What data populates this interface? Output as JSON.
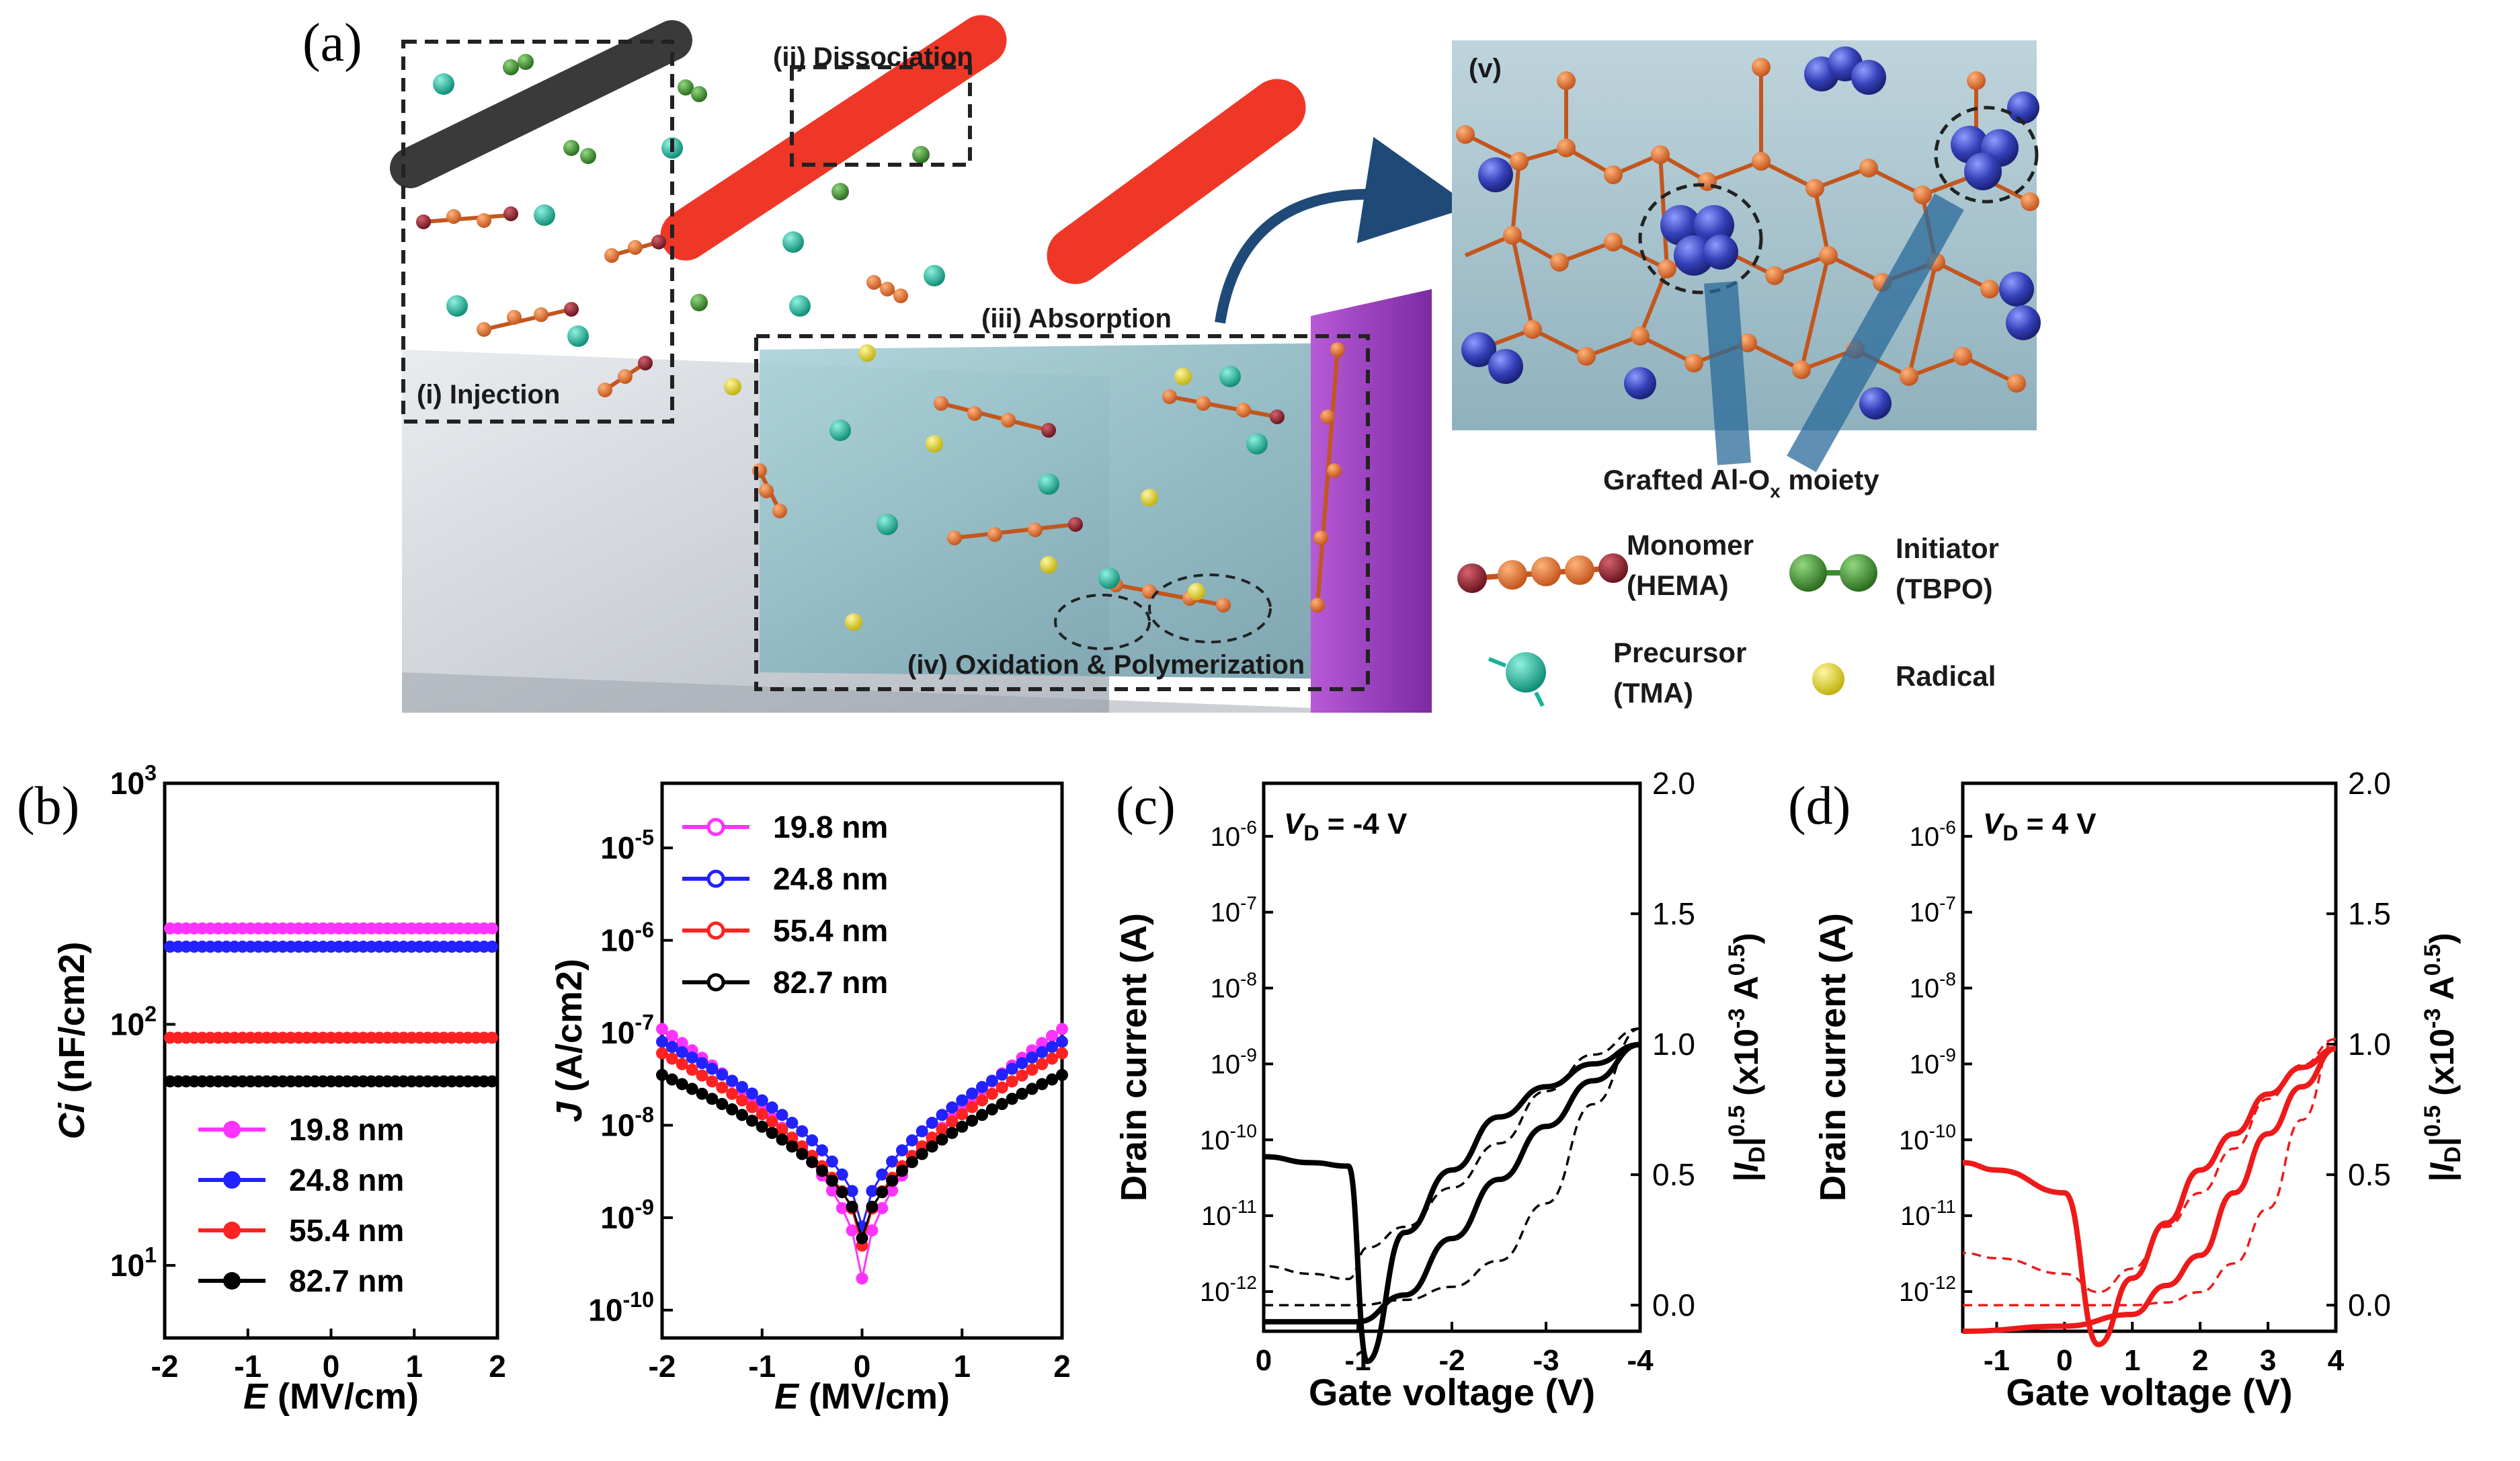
{
  "panel_labels": {
    "a": "(a)",
    "b": "(b)",
    "c": "(c)",
    "d": "(d)"
  },
  "schematic": {
    "steps": {
      "injection": "(i) Injection",
      "dissociation": "(ii) Dissociation",
      "absorption": "(iii) Absorption",
      "oxidation": "(iv) Oxidation & Polymerization",
      "zoom": "(v)"
    },
    "grafted_label": "Grafted Al-O",
    "grafted_sub": "x",
    "grafted_suffix": " moiety",
    "legend": {
      "monomer": [
        "Monomer",
        "(HEMA)"
      ],
      "initiator": [
        "Initiator",
        "(TBPO)"
      ],
      "precursor": [
        "Precursor",
        "(TMA)"
      ],
      "radical": [
        "Radical"
      ]
    },
    "colors": {
      "monomer": "#d46a2a",
      "monomer_end": "#8b1d2c",
      "initiator": "#3b8a2e",
      "precursor": "#18b49a",
      "radical": "#e4d21c",
      "laser": "#ee2211",
      "purple": "#9b3ec0",
      "film": "#8fbcc6",
      "alox": "#3440b8"
    }
  },
  "chart_data": [
    {
      "type": "scatter",
      "id": "b-left",
      "xlabel": "E (MV/cm)",
      "ylabel": "Ci (nF/cm2)",
      "yscale": "log",
      "xlim": [
        -2,
        2
      ],
      "ylim": [
        5,
        1000
      ],
      "xticks": [
        -2,
        -1,
        0,
        1,
        2
      ],
      "series": [
        {
          "name": "19.8 nm",
          "color": "#ff33ff",
          "y": 250
        },
        {
          "name": "24.8 nm",
          "color": "#2222ff",
          "y": 210
        },
        {
          "name": "55.4 nm",
          "color": "#ff2222",
          "y": 88
        },
        {
          "name": "82.7 nm",
          "color": "#000000",
          "y": 58
        }
      ]
    },
    {
      "type": "scatter",
      "id": "b-right",
      "xlabel": "E (MV/cm)",
      "ylabel": "J (A/cm2)",
      "yscale": "log",
      "xlim": [
        -2,
        2
      ],
      "ylim": [
        5e-11,
        5e-05
      ],
      "xticks": [
        -2,
        -1,
        0,
        1,
        2
      ],
      "series": [
        {
          "name": "19.8 nm",
          "color": "#ff33ff",
          "edge": 1.1e-07,
          "min": 2.2e-10
        },
        {
          "name": "24.8 nm",
          "color": "#2222ff",
          "edge": 8e-08,
          "min": 8e-10
        },
        {
          "name": "55.4 nm",
          "color": "#ff2222",
          "edge": 6e-08,
          "min": 5e-10
        },
        {
          "name": "82.7 nm",
          "color": "#000000",
          "edge": 3.5e-08,
          "min": 6e-10
        }
      ]
    },
    {
      "type": "line",
      "id": "c",
      "annotation": "VD = -4 V",
      "xlabel": "Gate voltage (V)",
      "ylabel_left": "Drain current (A)",
      "ylabel_right": "|ID|0.5 (x10-3 A0.5)",
      "xlim": [
        0,
        -4
      ],
      "xticks": [
        0,
        -1,
        -2,
        -3,
        -4
      ],
      "ylim_left": [
        3e-13,
        5e-06
      ],
      "ylim_right": [
        -0.1,
        2.0
      ],
      "yticks_right": [
        0.0,
        0.5,
        1.0,
        1.5,
        2.0
      ],
      "color": "#000000",
      "forward": [
        [
          0,
          4e-13
        ],
        [
          -0.5,
          4e-13
        ],
        [
          -1,
          4e-13
        ],
        [
          -1.5,
          9e-13
        ],
        [
          -2,
          5e-12
        ],
        [
          -2.5,
          3e-11
        ],
        [
          -3,
          1.5e-10
        ],
        [
          -3.5,
          6e-10
        ],
        [
          -4,
          1.8e-09
        ]
      ],
      "reverse": [
        [
          -4,
          1.8e-09
        ],
        [
          -3.5,
          1e-09
        ],
        [
          -3,
          5e-10
        ],
        [
          -2.5,
          2e-10
        ],
        [
          -2,
          4e-11
        ],
        [
          -1.5,
          6e-12
        ],
        [
          -1.1,
          1.2e-13
        ],
        [
          -0.9,
          4.5e-11
        ],
        [
          -0.5,
          5e-11
        ],
        [
          0,
          6e-11
        ]
      ],
      "sqrt_fwd": [
        [
          0,
          0
        ],
        [
          -1,
          0
        ],
        [
          -1.5,
          0.02
        ],
        [
          -2,
          0.07
        ],
        [
          -2.5,
          0.17
        ],
        [
          -3,
          0.39
        ],
        [
          -3.5,
          0.77
        ],
        [
          -4,
          1.06
        ]
      ],
      "sqrt_rev": [
        [
          -4,
          1.06
        ],
        [
          -3.5,
          0.96
        ],
        [
          -3,
          0.82
        ],
        [
          -2.5,
          0.62
        ],
        [
          -2,
          0.45
        ],
        [
          -1.5,
          0.3
        ],
        [
          -1.1,
          0.22
        ],
        [
          -0.9,
          0.1
        ],
        [
          -0.5,
          0.12
        ],
        [
          0,
          0.15
        ]
      ]
    },
    {
      "type": "line",
      "id": "d",
      "annotation": "VD = 4 V",
      "xlabel": "Gate voltage (V)",
      "ylabel_left": "Drain current (A)",
      "ylabel_right": "|ID|0.5 (x10-3 A0.5)",
      "xlim": [
        -1.5,
        4
      ],
      "xticks": [
        -1,
        0,
        1,
        2,
        3,
        4
      ],
      "ylim_left": [
        3e-13,
        5e-06
      ],
      "ylim_right": [
        -0.1,
        2.0
      ],
      "yticks_right": [
        0.0,
        0.5,
        1.0,
        1.5,
        2.0
      ],
      "color": "#ee1a1a",
      "forward": [
        [
          -1.5,
          3e-13
        ],
        [
          0,
          3.5e-13
        ],
        [
          1,
          5e-13
        ],
        [
          1.5,
          1.2e-12
        ],
        [
          2,
          3e-12
        ],
        [
          2.5,
          2e-11
        ],
        [
          3,
          1.2e-10
        ],
        [
          3.5,
          5e-10
        ],
        [
          4,
          1.6e-09
        ]
      ],
      "reverse": [
        [
          4,
          1.6e-09
        ],
        [
          3.5,
          9e-10
        ],
        [
          3,
          4e-10
        ],
        [
          2.5,
          1.2e-10
        ],
        [
          2,
          4e-11
        ],
        [
          1.5,
          8e-12
        ],
        [
          1,
          1.5e-12
        ],
        [
          0.5,
          2e-13
        ],
        [
          0,
          2e-11
        ],
        [
          -1,
          4e-11
        ],
        [
          -1.5,
          5e-11
        ]
      ],
      "sqrt_fwd": [
        [
          -1.5,
          0
        ],
        [
          0,
          0
        ],
        [
          1,
          0
        ],
        [
          1.5,
          0.01
        ],
        [
          2,
          0.05
        ],
        [
          2.5,
          0.16
        ],
        [
          3,
          0.37
        ],
        [
          3.5,
          0.71
        ],
        [
          4,
          1.02
        ]
      ],
      "sqrt_rev": [
        [
          4,
          1.02
        ],
        [
          3.5,
          0.92
        ],
        [
          3,
          0.79
        ],
        [
          2.5,
          0.6
        ],
        [
          2,
          0.43
        ],
        [
          1.5,
          0.3
        ],
        [
          1,
          0.14
        ],
        [
          0.5,
          0.05
        ],
        [
          0,
          0.12
        ],
        [
          -1,
          0.18
        ],
        [
          -1.5,
          0.2
        ]
      ]
    }
  ]
}
